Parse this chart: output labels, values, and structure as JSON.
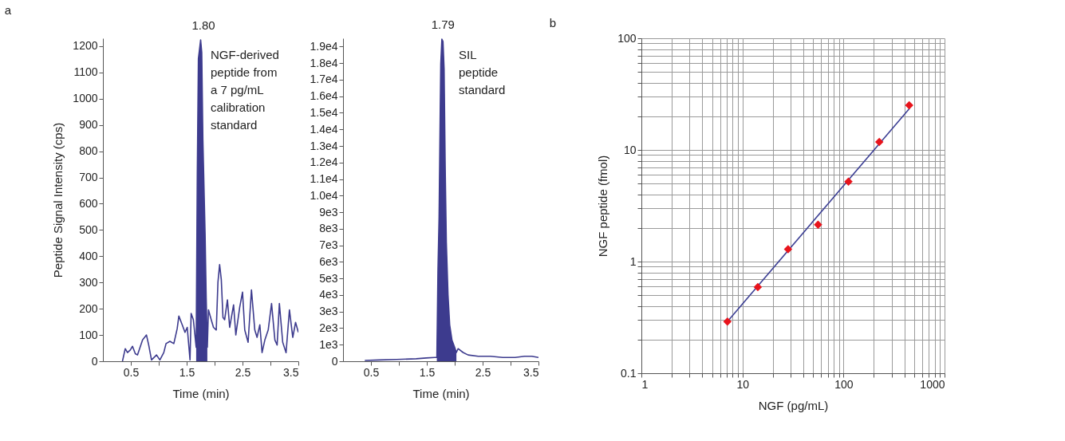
{
  "chart_data": [
    {
      "type": "line",
      "title": "a",
      "xlabel": "Time (min)",
      "ylabel": "Peptide Signal Intensity (cps)",
      "xlim": [
        0,
        3.5
      ],
      "ylim": [
        0,
        1230
      ],
      "grid": false,
      "xticks": [
        0.5,
        {
          "value": 1,
          "label": null
        },
        1.5,
        {
          "value": 2,
          "label": null
        },
        2.5,
        {
          "value": 3,
          "label": null
        },
        3.5
      ],
      "yticks": [
        0,
        100,
        200,
        300,
        400,
        500,
        600,
        700,
        800,
        900,
        1000,
        1100,
        1200
      ],
      "series": [
        {
          "color": "#3d3b8e",
          "x": [
            0.35,
            0.4,
            0.44,
            0.49,
            0.53,
            0.58,
            0.62,
            0.71,
            0.78,
            0.82,
            0.87,
            0.96,
            1.02,
            1.09,
            1.13,
            1.2,
            1.27,
            1.33,
            1.36,
            1.42,
            1.47,
            1.51,
            1.56,
            1.58,
            1.62,
            1.67,
            1.69,
            1.71,
            1.75,
            1.77,
            1.79,
            1.83,
            1.85,
            1.87,
            1.89,
            1.94,
            1.98,
            2.03,
            2.06,
            2.09,
            2.12,
            2.15,
            2.18,
            2.23,
            2.27,
            2.34,
            2.38,
            2.45,
            2.5,
            2.54,
            2.6,
            2.66,
            2.72,
            2.76,
            2.81,
            2.85,
            2.9,
            2.96,
            3.02,
            3.08,
            3.12,
            3.16,
            3.22,
            3.28,
            3.34,
            3.4,
            3.45,
            3.5
          ],
          "values": [
            0,
            48,
            33,
            43,
            57,
            29,
            24,
            81,
            100,
            62,
            5,
            24,
            5,
            33,
            67,
            76,
            67,
            124,
            172,
            139,
            110,
            129,
            5,
            182,
            158,
            53,
            712,
            1152,
            1224,
            1176,
            846,
            483,
            239,
            53,
            196,
            158,
            129,
            119,
            301,
            368,
            311,
            167,
            158,
            234,
            129,
            215,
            100,
            206,
            263,
            119,
            72,
            272,
            119,
            91,
            139,
            33,
            81,
            119,
            220,
            81,
            62,
            220,
            72,
            33,
            196,
            91,
            148,
            110
          ]
        },
        {
          "type": "area",
          "color": "#3d3b8e",
          "x": [
            1.67,
            1.69,
            1.71,
            1.75,
            1.77,
            1.79,
            1.83,
            1.85,
            1.87
          ],
          "values": [
            53,
            712,
            1152,
            1224,
            1176,
            846,
            483,
            239,
            53
          ]
        }
      ],
      "annotations": [
        {
          "text": "1.80",
          "x": 1.8,
          "y": 1224
        },
        "NGF-derived\npeptide from\na 7 pg/mL\ncalibration\nstandard"
      ]
    },
    {
      "type": "line",
      "xlabel": "Time (min)",
      "xlim": [
        0,
        3.5
      ],
      "ylim": [
        0,
        19500
      ],
      "grid": false,
      "xticks": [
        0.5,
        {
          "value": 1,
          "label": null
        },
        1.5,
        {
          "value": 2,
          "label": null
        },
        2.5,
        {
          "value": 3,
          "label": null
        },
        3.5
      ],
      "yticks": [
        0,
        {
          "value": 1000,
          "label": "1e3"
        },
        {
          "value": 2000,
          "label": "2e3"
        },
        {
          "value": 3000,
          "label": "3e3"
        },
        {
          "value": 4000,
          "label": "4e3"
        },
        {
          "value": 5000,
          "label": "5e3"
        },
        {
          "value": 6000,
          "label": "6e3"
        },
        {
          "value": 7000,
          "label": "7e3"
        },
        {
          "value": 8000,
          "label": "8e3"
        },
        {
          "value": 9000,
          "label": "9e3"
        },
        {
          "value": 10000,
          "label": "1.0e4"
        },
        {
          "value": 11000,
          "label": "1.1e4"
        },
        {
          "value": 12000,
          "label": "1.2e4"
        },
        {
          "value": 13000,
          "label": "1.3e4"
        },
        {
          "value": 14000,
          "label": "1.4e4"
        },
        {
          "value": 15000,
          "label": "1.5e4"
        },
        {
          "value": 16000,
          "label": "1.6e4"
        },
        {
          "value": 17000,
          "label": "1.7e4"
        },
        {
          "value": 18000,
          "label": "1.8e4"
        },
        {
          "value": 19000,
          "label": "1.9e4"
        }
      ],
      "series": [
        {
          "color": "#3d3b8e",
          "x": [
            0.39,
            0.65,
            0.96,
            1.31,
            1.49,
            1.64,
            1.68,
            1.7,
            1.72,
            1.74,
            1.75,
            1.77,
            1.79,
            1.81,
            1.83,
            1.85,
            1.88,
            1.91,
            1.95,
            2.0,
            2.03,
            2.06,
            2.15,
            2.24,
            2.42,
            2.64,
            2.86,
            3.08,
            3.25,
            3.38,
            3.5
          ],
          "values": [
            50,
            80,
            110,
            150,
            200,
            230,
            230,
            5530,
            8710,
            15060,
            17940,
            19450,
            19300,
            17640,
            11580,
            7190,
            4010,
            2200,
            1290,
            830,
            530,
            760,
            530,
            380,
            300,
            300,
            230,
            230,
            300,
            300,
            230
          ]
        },
        {
          "type": "area",
          "color": "#3d3b8e",
          "x": [
            1.68,
            1.7,
            1.72,
            1.74,
            1.75,
            1.77,
            1.79,
            1.81,
            1.83,
            1.85,
            1.88,
            1.91,
            1.95,
            2.0,
            2.03
          ],
          "values": [
            230,
            5530,
            8710,
            15060,
            17940,
            19450,
            19300,
            17640,
            11580,
            7190,
            4010,
            2200,
            1290,
            830,
            530
          ]
        }
      ],
      "annotations": [
        {
          "text": "1.79",
          "x": 1.79,
          "y": 19450
        },
        "SIL\npeptide\nstandard"
      ]
    },
    {
      "type": "scatter",
      "title": "b",
      "xlabel": "NGF (pg/mL)",
      "ylabel": "NGF peptide (fmol)",
      "log": "xy",
      "grid": true,
      "xlim": [
        1,
        1000
      ],
      "ylim": [
        0.1,
        100
      ],
      "xticks": [
        1,
        {
          "value": 2,
          "label": null
        },
        {
          "value": 3,
          "label": null
        },
        {
          "value": 4,
          "label": null
        },
        {
          "value": 5,
          "label": null
        },
        {
          "value": 6,
          "label": null
        },
        {
          "value": 7,
          "label": null
        },
        {
          "value": 8,
          "label": null
        },
        {
          "value": 9,
          "label": null
        },
        10,
        {
          "value": 20,
          "label": null
        },
        {
          "value": 30,
          "label": null
        },
        {
          "value": 40,
          "label": null
        },
        {
          "value": 50,
          "label": null
        },
        {
          "value": 60,
          "label": null
        },
        {
          "value": 70,
          "label": null
        },
        {
          "value": 80,
          "label": null
        },
        {
          "value": 90,
          "label": null
        },
        100,
        {
          "value": 200,
          "label": null
        },
        {
          "value": 300,
          "label": null
        },
        {
          "value": 400,
          "label": null
        },
        {
          "value": 500,
          "label": null
        },
        {
          "value": 600,
          "label": null
        },
        {
          "value": 700,
          "label": null
        },
        {
          "value": 800,
          "label": null
        },
        {
          "value": 900,
          "label": null
        },
        1000
      ],
      "yticks": [
        0.1,
        {
          "value": 0.2,
          "label": null
        },
        {
          "value": 0.3,
          "label": null
        },
        {
          "value": 0.4,
          "label": null
        },
        {
          "value": 0.5,
          "label": null
        },
        {
          "value": 0.6,
          "label": null
        },
        {
          "value": 0.7,
          "label": null
        },
        {
          "value": 0.8,
          "label": null
        },
        {
          "value": 0.9,
          "label": null
        },
        1,
        {
          "value": 2,
          "label": null
        },
        {
          "value": 3,
          "label": null
        },
        {
          "value": 4,
          "label": null
        },
        {
          "value": 5,
          "label": null
        },
        {
          "value": 6,
          "label": null
        },
        {
          "value": 7,
          "label": null
        },
        {
          "value": 8,
          "label": null
        },
        {
          "value": 9,
          "label": null
        },
        10,
        {
          "value": 20,
          "label": null
        },
        {
          "value": 30,
          "label": null
        },
        {
          "value": 40,
          "label": null
        },
        {
          "value": 50,
          "label": null
        },
        {
          "value": 60,
          "label": null
        },
        {
          "value": 70,
          "label": null
        },
        {
          "value": 80,
          "label": null
        },
        {
          "value": 90,
          "label": null
        },
        100
      ],
      "series": [
        {
          "type": "line",
          "color": "#3c3f94",
          "x": [
            7.1,
            450
          ],
          "values": [
            0.29,
            23.5
          ]
        },
        {
          "marker": "diamond",
          "color": "#e8141c",
          "x": [
            7.1,
            14.2,
            28.3,
            56,
            112,
            226,
            447
          ],
          "values": [
            0.29,
            0.59,
            1.29,
            2.14,
            5.2,
            11.8,
            25.1
          ]
        }
      ]
    }
  ]
}
